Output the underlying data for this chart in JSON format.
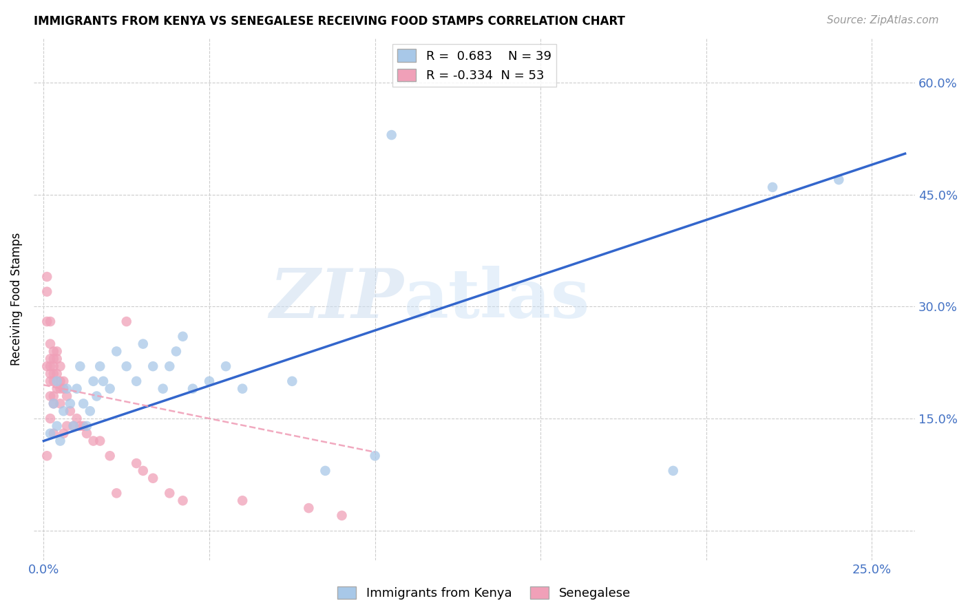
{
  "title": "IMMIGRANTS FROM KENYA VS SENEGALESE RECEIVING FOOD STAMPS CORRELATION CHART",
  "source": "Source: ZipAtlas.com",
  "xlabel_blue": "Immigrants from Kenya",
  "xlabel_pink": "Senegalese",
  "ylabel": "Receiving Food Stamps",
  "x_ticks": [
    0.0,
    0.05,
    0.1,
    0.15,
    0.2,
    0.25
  ],
  "x_tick_labels": [
    "0.0%",
    "",
    "",
    "",
    "",
    "25.0%"
  ],
  "y_ticks": [
    0.0,
    0.15,
    0.3,
    0.45,
    0.6
  ],
  "y_tick_labels": [
    "",
    "15.0%",
    "30.0%",
    "45.0%",
    "60.0%"
  ],
  "blue_R": 0.683,
  "blue_N": 39,
  "pink_R": -0.334,
  "pink_N": 53,
  "blue_color": "#a8c8e8",
  "pink_color": "#f0a0b8",
  "trendline_blue": "#3366cc",
  "trendline_pink": "#dd6688",
  "watermark_zip": "ZIP",
  "watermark_atlas": "atlas",
  "blue_scatter_x": [
    0.002,
    0.003,
    0.004,
    0.004,
    0.005,
    0.006,
    0.007,
    0.008,
    0.009,
    0.01,
    0.011,
    0.012,
    0.013,
    0.014,
    0.015,
    0.016,
    0.017,
    0.018,
    0.02,
    0.022,
    0.025,
    0.028,
    0.03,
    0.033,
    0.036,
    0.038,
    0.04,
    0.042,
    0.045,
    0.05,
    0.055,
    0.06,
    0.075,
    0.085,
    0.1,
    0.105,
    0.19,
    0.22,
    0.24
  ],
  "blue_scatter_y": [
    0.13,
    0.17,
    0.14,
    0.2,
    0.12,
    0.16,
    0.19,
    0.17,
    0.14,
    0.19,
    0.22,
    0.17,
    0.14,
    0.16,
    0.2,
    0.18,
    0.22,
    0.2,
    0.19,
    0.24,
    0.22,
    0.2,
    0.25,
    0.22,
    0.19,
    0.22,
    0.24,
    0.26,
    0.19,
    0.2,
    0.22,
    0.19,
    0.2,
    0.08,
    0.1,
    0.53,
    0.08,
    0.46,
    0.47
  ],
  "pink_scatter_x": [
    0.001,
    0.001,
    0.001,
    0.001,
    0.001,
    0.002,
    0.002,
    0.002,
    0.002,
    0.002,
    0.002,
    0.002,
    0.002,
    0.003,
    0.003,
    0.003,
    0.003,
    0.003,
    0.003,
    0.003,
    0.003,
    0.004,
    0.004,
    0.004,
    0.004,
    0.005,
    0.005,
    0.005,
    0.005,
    0.006,
    0.006,
    0.006,
    0.007,
    0.007,
    0.008,
    0.009,
    0.01,
    0.011,
    0.012,
    0.013,
    0.015,
    0.017,
    0.02,
    0.022,
    0.025,
    0.028,
    0.03,
    0.033,
    0.038,
    0.042,
    0.06,
    0.08,
    0.09
  ],
  "pink_scatter_y": [
    0.34,
    0.32,
    0.28,
    0.22,
    0.1,
    0.28,
    0.25,
    0.23,
    0.22,
    0.21,
    0.2,
    0.18,
    0.15,
    0.24,
    0.23,
    0.22,
    0.21,
    0.2,
    0.18,
    0.17,
    0.13,
    0.24,
    0.23,
    0.21,
    0.19,
    0.22,
    0.2,
    0.19,
    0.17,
    0.2,
    0.19,
    0.13,
    0.18,
    0.14,
    0.16,
    0.14,
    0.15,
    0.14,
    0.14,
    0.13,
    0.12,
    0.12,
    0.1,
    0.05,
    0.28,
    0.09,
    0.08,
    0.07,
    0.05,
    0.04,
    0.04,
    0.03,
    0.02
  ],
  "blue_trend_x0": 0.0,
  "blue_trend_y0": 0.12,
  "blue_trend_x1": 0.26,
  "blue_trend_y1": 0.505,
  "pink_trend_x0": 0.0,
  "pink_trend_y0": 0.195,
  "pink_trend_x1": 0.1,
  "pink_trend_y1": 0.105,
  "xlim": [
    -0.003,
    0.263
  ],
  "ylim": [
    -0.04,
    0.66
  ],
  "grid_color": "#cccccc",
  "tick_color": "#4472c4",
  "background": "#ffffff"
}
